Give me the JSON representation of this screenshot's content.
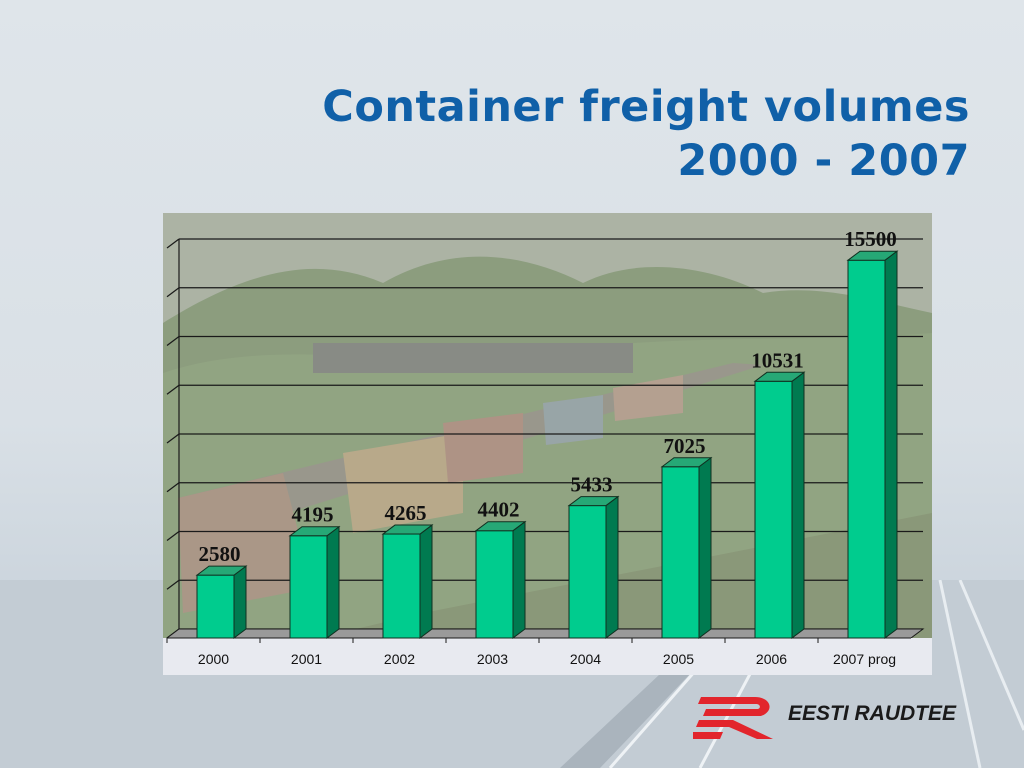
{
  "slide": {
    "title_line1": "Container freight volumes",
    "title_line2": "2000 - 2007"
  },
  "logo": {
    "text": "EESTI RAUDTEE"
  },
  "colors": {
    "title": "#1060a8",
    "bar_front": "#00cc8e",
    "bar_side": "#007a50",
    "bar_top": "#26a876",
    "logo_red": "#e2252c"
  },
  "chart_data": {
    "type": "bar",
    "categories": [
      "2000",
      "2001",
      "2002",
      "2003",
      "2004",
      "2005",
      "2006",
      "2007 prog"
    ],
    "values": [
      2580,
      4195,
      4265,
      4402,
      5433,
      7025,
      10531,
      15500
    ],
    "data_labels": [
      "2580",
      "4195",
      "4265",
      "4402",
      "5433",
      "7025",
      "10531",
      "15500"
    ],
    "title": "",
    "xlabel": "",
    "ylabel": "",
    "ylim": [
      0,
      16000
    ],
    "grid": true,
    "legend": "none",
    "style": "3d"
  }
}
